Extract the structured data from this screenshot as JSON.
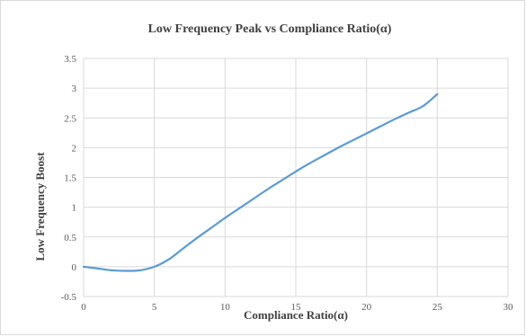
{
  "chart_data": {
    "type": "line",
    "title": "Low Frequency Peak vs Compliance Ratio(α)",
    "xlabel": "Compliance Ratio(α)",
    "ylabel": "Low Frequency Boost",
    "xlim": [
      0,
      30
    ],
    "ylim": [
      -0.5,
      3.5
    ],
    "xticks": [
      0,
      5,
      10,
      15,
      20,
      25,
      30
    ],
    "yticks": [
      -0.5,
      0,
      0.5,
      1,
      1.5,
      2,
      2.5,
      3,
      3.5
    ],
    "grid": true,
    "legend": "none",
    "series": [
      {
        "color": "#5b9bd5",
        "x": [
          0,
          1,
          2,
          3,
          4,
          5,
          6,
          7,
          8,
          9,
          10,
          11,
          12,
          13,
          14,
          15,
          16,
          17,
          18,
          19,
          20,
          21,
          22,
          23,
          24,
          25
        ],
        "y": [
          0,
          -0.03,
          -0.06,
          -0.07,
          -0.06,
          0,
          0.12,
          0.3,
          0.48,
          0.65,
          0.82,
          0.98,
          1.14,
          1.3,
          1.45,
          1.6,
          1.74,
          1.87,
          2.0,
          2.12,
          2.24,
          2.36,
          2.48,
          2.59,
          2.7,
          2.9
        ]
      }
    ]
  }
}
